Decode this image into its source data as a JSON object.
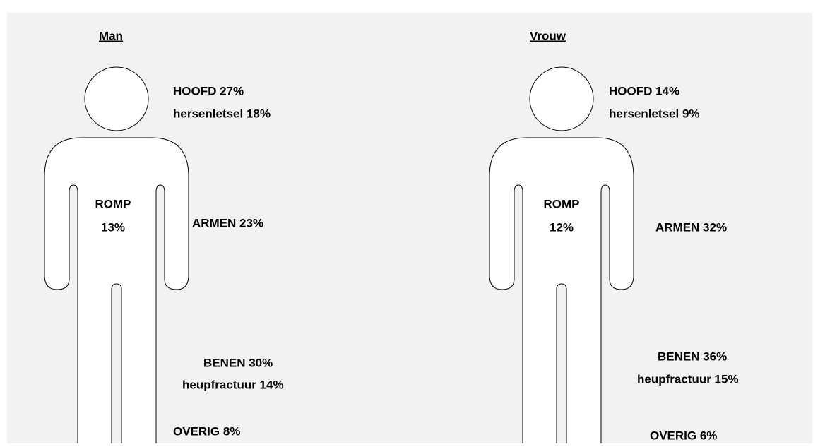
{
  "figures": [
    {
      "title": "Man",
      "head": "HOOFD 27%",
      "head_sub": "hersenletsel 18%",
      "torso": "ROMP",
      "torso_value": "13%",
      "arms": "ARMEN 23%",
      "legs": "BENEN 30%",
      "legs_sub": "heupfractuur 14%",
      "other": "OVERIG 8%"
    },
    {
      "title": "Vrouw",
      "head": "HOOFD 14%",
      "head_sub": "hersenletsel 9%",
      "torso": "ROMP",
      "torso_value": "12%",
      "arms": "ARMEN 32%",
      "legs": "BENEN 36%",
      "legs_sub": "heupfractuur 15%",
      "other": "OVERIG 6%"
    }
  ]
}
